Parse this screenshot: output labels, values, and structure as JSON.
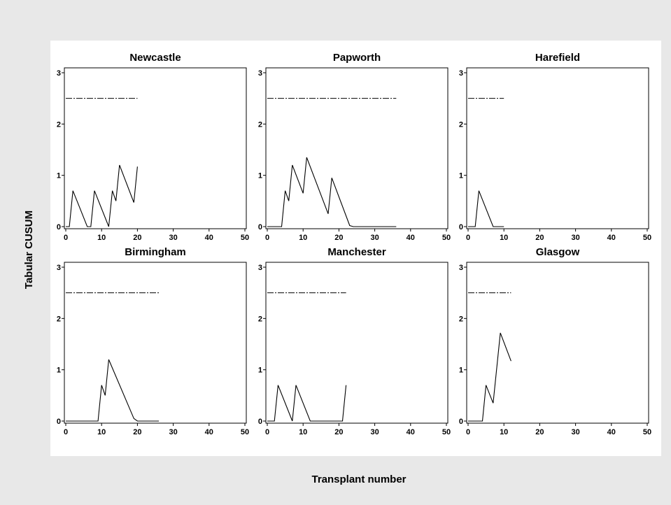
{
  "figure": {
    "ylabel": "Tabular CUSUM",
    "xlabel": "Transplant number",
    "background_color": "#e8e8e8",
    "panel_background": "#ffffff",
    "line_color": "#000000"
  },
  "chart_data": [
    {
      "type": "line",
      "title": "Newcastle",
      "xlim": [
        0,
        50
      ],
      "ylim": [
        0,
        3
      ],
      "xticks": [
        0,
        10,
        20,
        30,
        40,
        50
      ],
      "yticks": [
        0,
        1,
        2,
        3
      ],
      "control_limit": {
        "value": 2.5,
        "x_start": 0,
        "x_end": 20
      },
      "series": [
        {
          "x": [
            0,
            1,
            2,
            4,
            6,
            7,
            8,
            12,
            13,
            14,
            15,
            19,
            20
          ],
          "y": [
            0,
            0,
            0.7,
            0.35,
            0,
            0,
            0.7,
            0,
            0.7,
            0.5,
            1.2,
            0.47,
            1.17
          ]
        }
      ]
    },
    {
      "type": "line",
      "title": "Papworth",
      "xlim": [
        0,
        50
      ],
      "ylim": [
        0,
        3
      ],
      "xticks": [
        0,
        10,
        20,
        30,
        40,
        50
      ],
      "yticks": [
        0,
        1,
        2,
        3
      ],
      "control_limit": {
        "value": 2.5,
        "x_start": 0,
        "x_end": 36
      },
      "series": [
        {
          "x": [
            0,
            4,
            5,
            6,
            7,
            10,
            11,
            17,
            18,
            23,
            24,
            36
          ],
          "y": [
            0,
            0,
            0.7,
            0.5,
            1.2,
            0.65,
            1.35,
            0.25,
            0.95,
            0.02,
            0,
            0
          ]
        }
      ]
    },
    {
      "type": "line",
      "title": "Harefield",
      "xlim": [
        0,
        50
      ],
      "ylim": [
        0,
        3
      ],
      "xticks": [
        0,
        10,
        20,
        30,
        40,
        50
      ],
      "yticks": [
        0,
        1,
        2,
        3
      ],
      "control_limit": {
        "value": 2.5,
        "x_start": 0,
        "x_end": 10
      },
      "series": [
        {
          "x": [
            0,
            2,
            3,
            7,
            10
          ],
          "y": [
            0,
            0,
            0.7,
            0,
            0
          ]
        }
      ]
    },
    {
      "type": "line",
      "title": "Birmingham",
      "xlim": [
        0,
        50
      ],
      "ylim": [
        0,
        3
      ],
      "xticks": [
        0,
        10,
        20,
        30,
        40,
        50
      ],
      "yticks": [
        0,
        1,
        2,
        3
      ],
      "control_limit": {
        "value": 2.5,
        "x_start": 0,
        "x_end": 26
      },
      "series": [
        {
          "x": [
            0,
            9,
            10,
            11,
            12,
            19,
            20,
            26
          ],
          "y": [
            0,
            0,
            0.7,
            0.5,
            1.2,
            0.05,
            0,
            0
          ]
        }
      ]
    },
    {
      "type": "line",
      "title": "Manchester",
      "xlim": [
        0,
        50
      ],
      "ylim": [
        0,
        3
      ],
      "xticks": [
        0,
        10,
        20,
        30,
        40,
        50
      ],
      "yticks": [
        0,
        1,
        2,
        3
      ],
      "control_limit": {
        "value": 2.5,
        "x_start": 0,
        "x_end": 22
      },
      "series": [
        {
          "x": [
            0,
            2,
            3,
            7,
            8,
            12,
            21,
            22
          ],
          "y": [
            0,
            0,
            0.7,
            0,
            0.7,
            0,
            0,
            0.7
          ]
        }
      ]
    },
    {
      "type": "line",
      "title": "Glasgow",
      "xlim": [
        0,
        50
      ],
      "ylim": [
        0,
        3
      ],
      "xticks": [
        0,
        10,
        20,
        30,
        40,
        50
      ],
      "yticks": [
        0,
        1,
        2,
        3
      ],
      "control_limit": {
        "value": 2.5,
        "x_start": 0,
        "x_end": 12
      },
      "series": [
        {
          "x": [
            0,
            4,
            5,
            7,
            9,
            12
          ],
          "y": [
            0,
            0,
            0.7,
            0.35,
            1.72,
            1.17
          ]
        }
      ]
    }
  ]
}
